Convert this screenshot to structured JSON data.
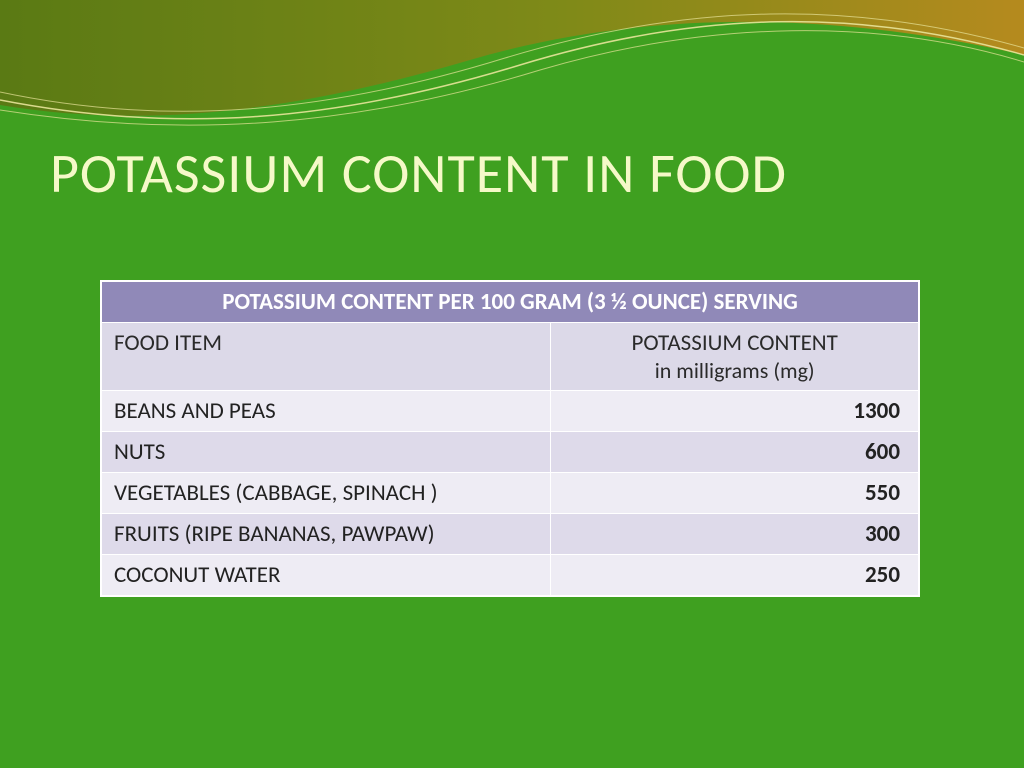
{
  "slide": {
    "background_color": "#3fa020",
    "title": {
      "text": "POTASSIUM CONTENT IN FOOD",
      "color": "#f5f9c8",
      "fontsize": 56
    }
  },
  "swoosh": {
    "gradient_top_from": "#5a7a14",
    "gradient_top_to": "#b58a1e",
    "line_color": "#e8e49a"
  },
  "table": {
    "header_bg": "#9089b8",
    "header_text_color": "#ffffff",
    "subheader_bg": "#dcd9e8",
    "subheader_text_color": "#2a2a2a",
    "row_alt1_bg": "#eeecf4",
    "row_alt2_bg": "#dedaea",
    "border_color": "#ffffff",
    "title": "POTASSIUM CONTENT PER 100 GRAM (3 ½ OUNCE) SERVING",
    "col1": "FOOD ITEM",
    "col2_line1": "POTASSIUM CONTENT",
    "col2_line2": "in milligrams (mg)",
    "rows": [
      {
        "food": "BEANS AND PEAS",
        "value": "1300"
      },
      {
        "food": "NUTS",
        "value": "600"
      },
      {
        "food": "VEGETABLES (CABBAGE, SPINACH )",
        "value": "550"
      },
      {
        "food": "FRUITS (RIPE BANANAS, PAWPAW)",
        "value": "300"
      },
      {
        "food": "COCONUT WATER",
        "value": "250"
      }
    ]
  }
}
